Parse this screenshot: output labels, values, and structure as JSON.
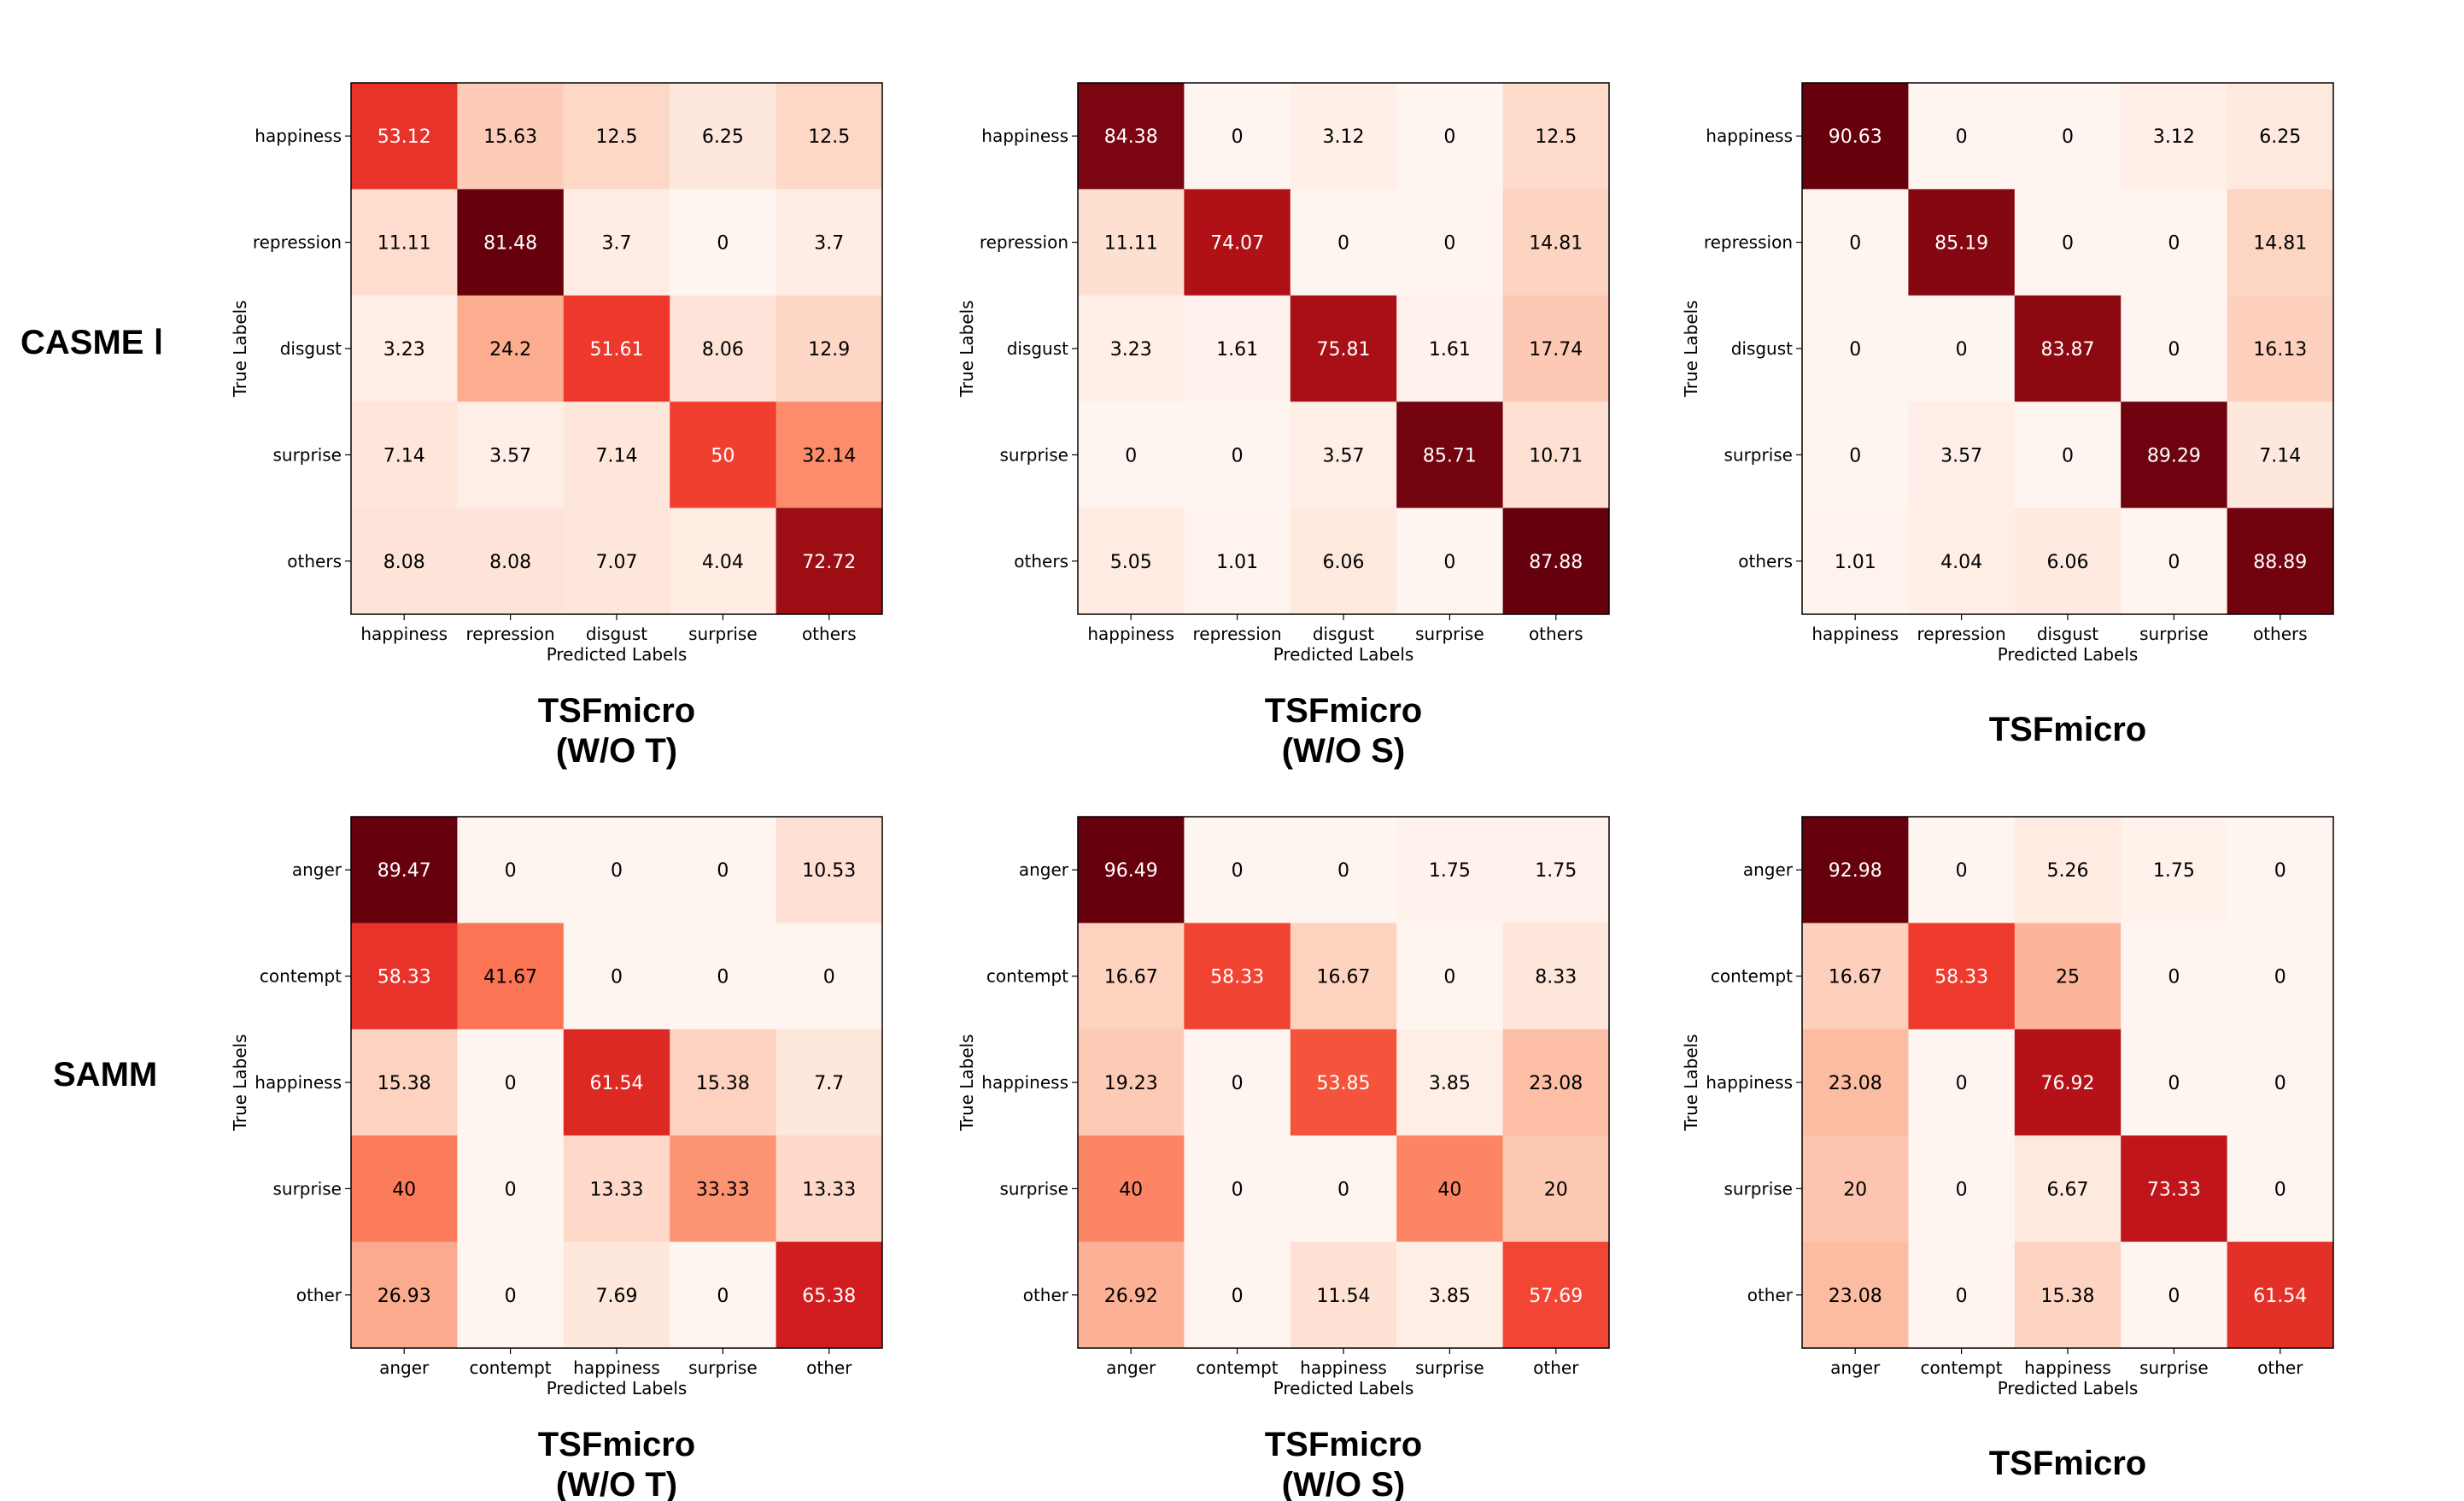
{
  "row_labels": [
    "CASME Ⅰ",
    "SAMM"
  ],
  "colors": {
    "low": "#fff5f0",
    "high": "#67000d"
  },
  "chart_data": [
    {
      "type": "heatmap",
      "row": 0,
      "col": 0,
      "title_lines": [
        "TSFmicro",
        "(W/O T)"
      ],
      "xlabel": "Predicted Labels",
      "ylabel": "True Labels",
      "labels": [
        "happiness",
        "repression",
        "disgust",
        "surprise",
        "others"
      ],
      "values": [
        [
          53.12,
          15.63,
          12.5,
          6.25,
          12.5
        ],
        [
          11.11,
          81.48,
          3.7,
          0.0,
          3.7
        ],
        [
          3.23,
          24.2,
          51.61,
          8.06,
          12.9
        ],
        [
          7.14,
          3.57,
          7.14,
          50.0,
          32.14
        ],
        [
          8.08,
          8.08,
          7.07,
          4.04,
          72.72
        ]
      ]
    },
    {
      "type": "heatmap",
      "row": 0,
      "col": 1,
      "title_lines": [
        "TSFmicro",
        "(W/O S)"
      ],
      "xlabel": "Predicted Labels",
      "ylabel": "True Labels",
      "labels": [
        "happiness",
        "repression",
        "disgust",
        "surprise",
        "others"
      ],
      "values": [
        [
          84.38,
          0.0,
          3.12,
          0.0,
          12.5
        ],
        [
          11.11,
          74.07,
          0.0,
          0.0,
          14.81
        ],
        [
          3.23,
          1.61,
          75.81,
          1.61,
          17.74
        ],
        [
          0.0,
          0.0,
          3.57,
          85.71,
          10.71
        ],
        [
          5.05,
          1.01,
          6.06,
          0.0,
          87.88
        ]
      ]
    },
    {
      "type": "heatmap",
      "row": 0,
      "col": 2,
      "title_lines": [
        "TSFmicro"
      ],
      "xlabel": "Predicted Labels",
      "ylabel": "True Labels",
      "labels": [
        "happiness",
        "repression",
        "disgust",
        "surprise",
        "others"
      ],
      "values": [
        [
          90.63,
          0.0,
          0.0,
          3.12,
          6.25
        ],
        [
          0.0,
          85.19,
          0.0,
          0.0,
          14.81
        ],
        [
          0.0,
          0.0,
          83.87,
          0.0,
          16.13
        ],
        [
          0.0,
          3.57,
          0.0,
          89.29,
          7.14
        ],
        [
          1.01,
          4.04,
          6.06,
          0.0,
          88.89
        ]
      ]
    },
    {
      "type": "heatmap",
      "row": 1,
      "col": 0,
      "title_lines": [
        "TSFmicro",
        "(W/O T)"
      ],
      "xlabel": "Predicted Labels",
      "ylabel": "True Labels",
      "labels": [
        "anger",
        "contempt",
        "happiness",
        "surprise",
        "other"
      ],
      "values": [
        [
          89.47,
          0.0,
          0.0,
          0.0,
          10.53
        ],
        [
          58.33,
          41.67,
          0.0,
          0.0,
          0.0
        ],
        [
          15.38,
          0.0,
          61.54,
          15.38,
          7.7
        ],
        [
          40.0,
          0.0,
          13.33,
          33.33,
          13.33
        ],
        [
          26.93,
          0.0,
          7.69,
          0.0,
          65.38
        ]
      ]
    },
    {
      "type": "heatmap",
      "row": 1,
      "col": 1,
      "title_lines": [
        "TSFmicro",
        "(W/O S)"
      ],
      "xlabel": "Predicted Labels",
      "ylabel": "True Labels",
      "labels": [
        "anger",
        "contempt",
        "happiness",
        "surprise",
        "other"
      ],
      "values": [
        [
          96.49,
          0.0,
          0.0,
          1.75,
          1.75
        ],
        [
          16.67,
          58.33,
          16.67,
          0.0,
          8.33
        ],
        [
          19.23,
          0.0,
          53.85,
          3.85,
          23.08
        ],
        [
          40.0,
          0.0,
          0.0,
          40.0,
          20.0
        ],
        [
          26.92,
          0.0,
          11.54,
          3.85,
          57.69
        ]
      ]
    },
    {
      "type": "heatmap",
      "row": 1,
      "col": 2,
      "title_lines": [
        "TSFmicro"
      ],
      "xlabel": "Predicted Labels",
      "ylabel": "True Labels",
      "labels": [
        "anger",
        "contempt",
        "happiness",
        "surprise",
        "other"
      ],
      "values": [
        [
          92.98,
          0.0,
          5.26,
          1.75,
          0.0
        ],
        [
          16.67,
          58.33,
          25.0,
          0.0,
          0.0
        ],
        [
          23.08,
          0.0,
          76.92,
          0.0,
          0.0
        ],
        [
          20.0,
          0.0,
          6.67,
          73.33,
          0.0
        ],
        [
          23.08,
          0.0,
          15.38,
          0.0,
          61.54
        ]
      ]
    }
  ]
}
